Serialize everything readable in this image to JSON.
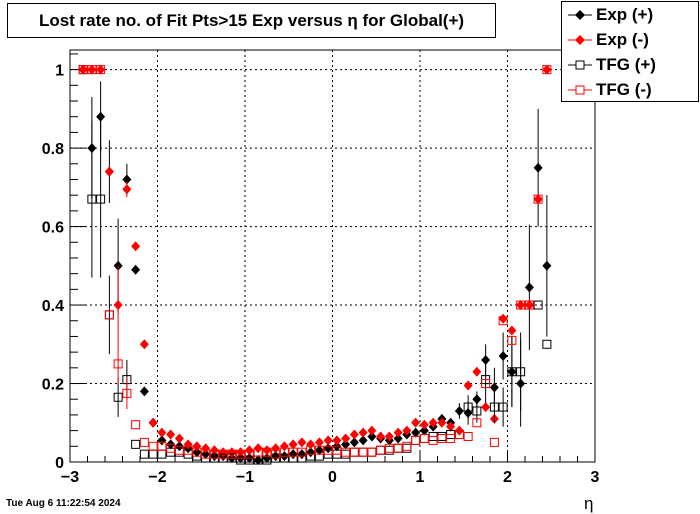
{
  "chart_data": {
    "type": "scatter",
    "title": "Lost rate no. of Fit Pts>15 Exp versus η for Global(+)",
    "xlabel": "η",
    "ylabel": "",
    "xlim": [
      -3,
      3
    ],
    "ylim": [
      0,
      1.05
    ],
    "xticks": [
      -3,
      -2,
      -1,
      0,
      1,
      2,
      3
    ],
    "yticks": [
      0,
      0.2,
      0.4,
      0.6,
      0.8,
      1
    ],
    "grid": true,
    "legend_position": "top-right",
    "series": [
      {
        "name": "Exp (+)",
        "marker": "filled-diamond",
        "color": "#000000",
        "x": [
          -2.85,
          -2.75,
          -2.65,
          -2.55,
          -2.45,
          -2.35,
          -2.25,
          -2.15,
          -2.05,
          -1.95,
          -1.85,
          -1.75,
          -1.65,
          -1.55,
          -1.45,
          -1.35,
          -1.25,
          -1.15,
          -1.05,
          -0.95,
          -0.85,
          -0.75,
          -0.65,
          -0.55,
          -0.45,
          -0.35,
          -0.25,
          -0.15,
          -0.05,
          0.05,
          0.15,
          0.25,
          0.35,
          0.45,
          0.55,
          0.65,
          0.75,
          0.85,
          0.95,
          1.05,
          1.15,
          1.25,
          1.35,
          1.45,
          1.55,
          1.65,
          1.75,
          1.85,
          1.95,
          2.05,
          2.15,
          2.25,
          2.35,
          2.45
        ],
        "y": [
          1.0,
          0.8,
          0.88,
          0.74,
          0.5,
          0.72,
          0.49,
          0.18,
          0.1,
          0.055,
          0.045,
          0.04,
          0.035,
          0.025,
          0.02,
          0.015,
          0.015,
          0.01,
          0.01,
          0.01,
          0.005,
          0.01,
          0.015,
          0.015,
          0.02,
          0.02,
          0.025,
          0.03,
          0.035,
          0.04,
          0.045,
          0.05,
          0.055,
          0.065,
          0.06,
          0.055,
          0.06,
          0.07,
          0.075,
          0.08,
          0.09,
          0.11,
          0.1,
          0.13,
          0.125,
          0.16,
          0.26,
          0.19,
          0.27,
          0.23,
          0.2,
          0.445,
          0.75,
          0.5
        ],
        "err": [
          0,
          0.13,
          0.09,
          0.08,
          0.12,
          0.04,
          0,
          0,
          0,
          0,
          0,
          0,
          0,
          0,
          0,
          0,
          0,
          0,
          0,
          0,
          0,
          0,
          0,
          0,
          0,
          0,
          0,
          0,
          0,
          0,
          0,
          0,
          0,
          0,
          0,
          0,
          0,
          0,
          0,
          0,
          0.01,
          0,
          0,
          0.02,
          0.03,
          0.02,
          0.04,
          0.05,
          0.06,
          0.09,
          0.11,
          0.16,
          0.15,
          0.18
        ]
      },
      {
        "name": "Exp (-)",
        "marker": "filled-diamond",
        "color": "#ff0000",
        "x": [
          -2.85,
          -2.75,
          -2.65,
          -2.55,
          -2.45,
          -2.35,
          -2.25,
          -2.15,
          -2.05,
          -1.95,
          -1.85,
          -1.75,
          -1.65,
          -1.55,
          -1.45,
          -1.35,
          -1.25,
          -1.15,
          -1.05,
          -0.95,
          -0.85,
          -0.75,
          -0.65,
          -0.55,
          -0.45,
          -0.35,
          -0.25,
          -0.15,
          -0.05,
          0.05,
          0.15,
          0.25,
          0.35,
          0.45,
          0.55,
          0.65,
          0.75,
          0.85,
          0.95,
          1.05,
          1.15,
          1.25,
          1.35,
          1.45,
          1.55,
          1.65,
          1.75,
          1.85,
          1.95,
          2.05,
          2.15,
          2.25,
          2.35,
          2.45
        ],
        "y": [
          1.0,
          1.0,
          1.0,
          0.74,
          0.4,
          0.695,
          0.55,
          0.3,
          0.1,
          0.075,
          0.07,
          0.06,
          0.045,
          0.04,
          0.035,
          0.03,
          0.025,
          0.025,
          0.025,
          0.03,
          0.035,
          0.03,
          0.035,
          0.04,
          0.045,
          0.05,
          0.045,
          0.05,
          0.055,
          0.055,
          0.06,
          0.07,
          0.075,
          0.08,
          0.065,
          0.065,
          0.075,
          0.08,
          0.1,
          0.095,
          0.1,
          0.1,
          0.09,
          0.08,
          0.195,
          0.23,
          0.14,
          0.11,
          0.365,
          0.335,
          0.4,
          0.4,
          0.67,
          1.0
        ],
        "err": [
          0,
          0,
          0,
          0,
          0.1,
          0.02,
          0,
          0,
          0,
          0,
          0,
          0,
          0,
          0,
          0,
          0,
          0,
          0,
          0,
          0,
          0,
          0,
          0,
          0,
          0,
          0,
          0,
          0,
          0,
          0,
          0,
          0,
          0,
          0,
          0,
          0,
          0,
          0,
          0,
          0,
          0,
          0,
          0,
          0,
          0,
          0,
          0,
          0,
          0,
          0,
          0,
          0,
          0,
          0
        ]
      },
      {
        "name": "TFG (+)",
        "marker": "open-square",
        "color": "#000000",
        "x": [
          -2.85,
          -2.75,
          -2.65,
          -2.55,
          -2.45,
          -2.35,
          -2.25,
          -2.15,
          -2.05,
          -1.95,
          -1.85,
          -1.75,
          -1.65,
          -1.55,
          -1.45,
          -1.35,
          -1.25,
          -1.15,
          -1.05,
          -0.95,
          -0.85,
          -0.75,
          -0.65,
          -0.55,
          -0.45,
          -0.35,
          -0.25,
          -0.15,
          -0.05,
          0.05,
          0.15,
          0.25,
          0.35,
          0.45,
          0.55,
          0.65,
          0.75,
          0.85,
          0.95,
          1.05,
          1.15,
          1.25,
          1.35,
          1.45,
          1.55,
          1.65,
          1.75,
          1.85,
          1.95,
          2.05,
          2.15,
          2.25,
          2.35,
          2.45
        ],
        "y": [
          1.0,
          0.67,
          0.67,
          0.375,
          0.165,
          0.21,
          0.045,
          0.02,
          0.02,
          0.02,
          0.025,
          0.025,
          0.02,
          0.015,
          0.01,
          0.01,
          0.01,
          0.01,
          0.005,
          0.005,
          0.005,
          0.005,
          0.01,
          0.01,
          0.01,
          0.01,
          0.015,
          0.015,
          0.02,
          0.02,
          0.02,
          0.025,
          0.025,
          0.025,
          0.03,
          0.03,
          0.035,
          0.035,
          0.055,
          0.06,
          0.065,
          0.065,
          0.07,
          0.07,
          0.14,
          0.13,
          0.21,
          0.14,
          0.14,
          0.23,
          0.23,
          0.4,
          0.4,
          0.3
        ],
        "err": [
          0,
          0.2,
          0.2,
          0.1,
          0.05,
          0.05,
          0,
          0,
          0,
          0,
          0,
          0,
          0,
          0,
          0,
          0,
          0,
          0,
          0,
          0,
          0,
          0,
          0,
          0,
          0,
          0,
          0,
          0,
          0,
          0,
          0,
          0,
          0,
          0,
          0,
          0,
          0,
          0,
          0,
          0,
          0,
          0,
          0,
          0,
          0.03,
          0.03,
          0.06,
          0.04,
          0.05,
          0.09,
          0.1,
          0,
          0,
          0
        ]
      },
      {
        "name": "TFG (-)",
        "marker": "open-square",
        "color": "#ff0000",
        "x": [
          -2.85,
          -2.75,
          -2.65,
          -2.55,
          -2.45,
          -2.35,
          -2.25,
          -2.15,
          -2.05,
          -1.95,
          -1.85,
          -1.75,
          -1.65,
          -1.55,
          -1.45,
          -1.35,
          -1.25,
          -1.15,
          -1.05,
          -0.95,
          -0.85,
          -0.75,
          -0.65,
          -0.55,
          -0.45,
          -0.35,
          -0.25,
          -0.15,
          -0.05,
          0.05,
          0.15,
          0.25,
          0.35,
          0.45,
          0.55,
          0.65,
          0.75,
          0.85,
          0.95,
          1.05,
          1.15,
          1.25,
          1.35,
          1.45,
          1.55,
          1.65,
          1.75,
          1.85,
          1.95,
          2.05,
          2.15,
          2.25,
          2.35,
          2.45
        ],
        "y": [
          1.0,
          1.0,
          1.0,
          0.375,
          0.25,
          0.175,
          0.095,
          0.05,
          0.04,
          0.04,
          0.035,
          0.03,
          0.03,
          0.025,
          0.02,
          0.02,
          0.02,
          0.02,
          0.02,
          0.02,
          0.025,
          0.025,
          0.02,
          0.025,
          0.025,
          0.025,
          0.03,
          0.03,
          0.03,
          0.03,
          0.025,
          0.025,
          0.025,
          0.025,
          0.03,
          0.035,
          0.035,
          0.04,
          0.055,
          0.06,
          0.055,
          0.06,
          0.06,
          0.07,
          0.065,
          0.1,
          0.2,
          0.05,
          0.36,
          0.31,
          0.4,
          0.4,
          0.67,
          1.0
        ],
        "err": [
          0,
          0,
          0,
          0,
          0.05,
          0.04,
          0,
          0,
          0,
          0,
          0,
          0,
          0,
          0,
          0,
          0,
          0,
          0,
          0,
          0,
          0,
          0,
          0,
          0,
          0,
          0,
          0,
          0,
          0,
          0,
          0,
          0,
          0,
          0,
          0,
          0,
          0,
          0,
          0,
          0,
          0,
          0,
          0,
          0,
          0,
          0,
          0,
          0,
          0,
          0,
          0,
          0,
          0,
          0
        ]
      }
    ]
  },
  "timestamp": "Tue Aug  6 11:22:54 2024",
  "legend": [
    {
      "label": "Exp (+)"
    },
    {
      "label": "Exp (-)"
    },
    {
      "label": "TFG (+)"
    },
    {
      "label": "TFG (-)"
    }
  ]
}
